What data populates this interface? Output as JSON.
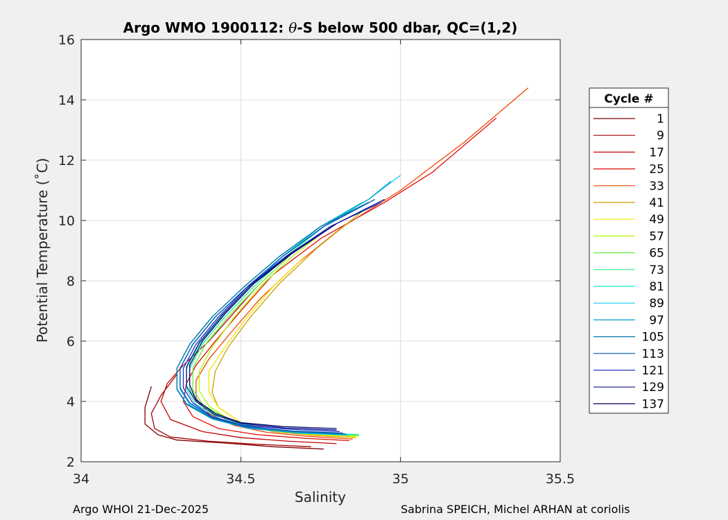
{
  "chart_data": {
    "type": "line",
    "title": {
      "prefix": "Argo WMO 1900112: ",
      "theta": "θ",
      "suffix": "-S below 500 dbar,  QC=(1,2)"
    },
    "xlabel": "Salinity",
    "ylabel": "Potential Temperature (˚C)",
    "xlim": [
      34,
      35.5
    ],
    "ylim": [
      2,
      16
    ],
    "xticks": [
      "34",
      "34.5",
      "35",
      "35.5"
    ],
    "xtick_values": [
      34,
      34.5,
      35,
      35.5
    ],
    "yticks": [
      "2",
      "4",
      "6",
      "8",
      "10",
      "12",
      "14",
      "16"
    ],
    "ytick_values": [
      2,
      4,
      6,
      8,
      10,
      12,
      14,
      16
    ],
    "grid": true,
    "legend": {
      "title": "Cycle #",
      "placement": "right",
      "entries": [
        {
          "label": "1",
          "color": "#800000"
        },
        {
          "label": "9",
          "color": "#a00000"
        },
        {
          "label": "17",
          "color": "#c80000"
        },
        {
          "label": "25",
          "color": "#e00a00"
        },
        {
          "label": "33",
          "color": "#f04500"
        },
        {
          "label": "41",
          "color": "#c8a000"
        },
        {
          "label": "49",
          "color": "#f5e600"
        },
        {
          "label": "57",
          "color": "#b4f500"
        },
        {
          "label": "65",
          "color": "#5ff03c"
        },
        {
          "label": "73",
          "color": "#28f08c"
        },
        {
          "label": "81",
          "color": "#14e6c8"
        },
        {
          "label": "89",
          "color": "#14c8f0"
        },
        {
          "label": "97",
          "color": "#00a0d2"
        },
        {
          "label": "105",
          "color": "#0078aa"
        },
        {
          "label": "113",
          "color": "#0050b4"
        },
        {
          "label": "121",
          "color": "#1e32c8"
        },
        {
          "label": "129",
          "color": "#0a148c"
        },
        {
          "label": "137",
          "color": "#000064"
        }
      ]
    },
    "series": [
      {
        "name": "1",
        "points": [
          [
            34.76,
            2.42
          ],
          [
            34.6,
            2.5
          ],
          [
            34.45,
            2.62
          ],
          [
            34.3,
            2.72
          ],
          [
            34.24,
            2.9
          ],
          [
            34.2,
            3.25
          ],
          [
            34.2,
            3.8
          ],
          [
            34.22,
            4.5
          ]
        ]
      },
      {
        "name": "9",
        "points": [
          [
            34.72,
            2.5
          ],
          [
            34.55,
            2.58
          ],
          [
            34.4,
            2.68
          ],
          [
            34.28,
            2.82
          ],
          [
            34.23,
            3.1
          ],
          [
            34.22,
            3.6
          ],
          [
            34.25,
            4.2
          ],
          [
            34.3,
            4.9
          ]
        ]
      },
      {
        "name": "17",
        "points": [
          [
            34.8,
            2.6
          ],
          [
            34.65,
            2.68
          ],
          [
            34.5,
            2.8
          ],
          [
            34.38,
            3.0
          ],
          [
            34.28,
            3.4
          ],
          [
            34.25,
            4.0
          ],
          [
            34.27,
            4.6
          ],
          [
            34.32,
            5.2
          ],
          [
            34.4,
            6.0
          ],
          [
            34.45,
            6.6
          ],
          [
            34.5,
            7.2
          ],
          [
            34.55,
            7.8
          ]
        ]
      },
      {
        "name": "25",
        "points": [
          [
            34.84,
            2.7
          ],
          [
            34.7,
            2.78
          ],
          [
            34.55,
            2.9
          ],
          [
            34.43,
            3.1
          ],
          [
            34.35,
            3.5
          ],
          [
            34.32,
            4.0
          ],
          [
            34.33,
            4.6
          ],
          [
            34.36,
            5.2
          ],
          [
            34.42,
            6.0
          ],
          [
            34.5,
            7.0
          ],
          [
            34.6,
            8.2
          ],
          [
            34.75,
            9.4
          ],
          [
            34.95,
            10.6
          ],
          [
            35.1,
            11.6
          ],
          [
            35.3,
            13.4
          ]
        ]
      },
      {
        "name": "33",
        "points": [
          [
            34.85,
            2.75
          ],
          [
            34.7,
            2.85
          ],
          [
            34.58,
            2.98
          ],
          [
            34.48,
            3.2
          ],
          [
            34.4,
            3.6
          ],
          [
            34.36,
            4.1
          ],
          [
            34.36,
            4.7
          ],
          [
            34.4,
            5.4
          ],
          [
            34.47,
            6.3
          ],
          [
            34.56,
            7.4
          ],
          [
            34.68,
            8.6
          ],
          [
            34.82,
            9.8
          ],
          [
            35.0,
            11.0
          ],
          [
            35.2,
            12.6
          ],
          [
            35.4,
            14.4
          ]
        ]
      },
      {
        "name": "41",
        "points": [
          [
            34.86,
            2.8
          ],
          [
            34.72,
            2.88
          ],
          [
            34.6,
            3.0
          ],
          [
            34.5,
            3.3
          ],
          [
            34.43,
            3.8
          ],
          [
            34.41,
            4.3
          ],
          [
            34.42,
            5.0
          ],
          [
            34.46,
            5.8
          ],
          [
            34.53,
            6.8
          ],
          [
            34.62,
            7.9
          ],
          [
            34.74,
            9.1
          ],
          [
            34.88,
            10.3
          ]
        ]
      },
      {
        "name": "49",
        "points": [
          [
            34.86,
            2.82
          ],
          [
            34.72,
            2.9
          ],
          [
            34.6,
            3.02
          ],
          [
            34.5,
            3.3
          ],
          [
            34.43,
            3.8
          ],
          [
            34.4,
            4.3
          ],
          [
            34.4,
            5.0
          ],
          [
            34.45,
            5.8
          ],
          [
            34.52,
            6.8
          ],
          [
            34.6,
            7.8
          ],
          [
            34.7,
            8.8
          ]
        ]
      },
      {
        "name": "57",
        "points": [
          [
            34.87,
            2.85
          ],
          [
            34.72,
            2.92
          ],
          [
            34.58,
            3.06
          ],
          [
            34.47,
            3.35
          ],
          [
            34.4,
            3.85
          ],
          [
            34.37,
            4.35
          ],
          [
            34.37,
            5.0
          ],
          [
            34.41,
            5.8
          ],
          [
            34.48,
            6.8
          ],
          [
            34.56,
            7.8
          ],
          [
            34.66,
            8.8
          ],
          [
            34.78,
            9.8
          ]
        ]
      },
      {
        "name": "65",
        "points": [
          [
            34.87,
            2.88
          ],
          [
            34.72,
            2.95
          ],
          [
            34.57,
            3.1
          ],
          [
            34.46,
            3.4
          ],
          [
            34.38,
            3.9
          ],
          [
            34.35,
            4.4
          ],
          [
            34.35,
            5.1
          ],
          [
            34.39,
            5.9
          ],
          [
            34.46,
            6.8
          ],
          [
            34.55,
            7.8
          ],
          [
            34.65,
            8.8
          ]
        ]
      },
      {
        "name": "73",
        "points": [
          [
            34.87,
            2.9
          ],
          [
            34.71,
            2.97
          ],
          [
            34.56,
            3.12
          ],
          [
            34.45,
            3.42
          ],
          [
            34.37,
            3.9
          ],
          [
            34.34,
            4.4
          ],
          [
            34.34,
            5.1
          ],
          [
            34.38,
            5.9
          ],
          [
            34.45,
            6.8
          ],
          [
            34.54,
            7.8
          ],
          [
            34.64,
            8.8
          ],
          [
            34.76,
            9.8
          ]
        ]
      },
      {
        "name": "81",
        "points": [
          [
            34.86,
            2.9
          ],
          [
            34.7,
            2.98
          ],
          [
            34.55,
            3.12
          ],
          [
            34.44,
            3.4
          ],
          [
            34.36,
            3.9
          ],
          [
            34.33,
            4.4
          ],
          [
            34.33,
            5.1
          ],
          [
            34.37,
            5.9
          ],
          [
            34.44,
            6.8
          ],
          [
            34.53,
            7.8
          ],
          [
            34.63,
            8.8
          ],
          [
            34.75,
            9.8
          ],
          [
            34.88,
            10.6
          ]
        ]
      },
      {
        "name": "89",
        "points": [
          [
            34.84,
            2.88
          ],
          [
            34.68,
            2.95
          ],
          [
            34.53,
            3.1
          ],
          [
            34.42,
            3.4
          ],
          [
            34.34,
            3.9
          ],
          [
            34.31,
            4.4
          ],
          [
            34.31,
            5.1
          ],
          [
            34.35,
            5.9
          ],
          [
            34.42,
            6.8
          ],
          [
            34.52,
            7.8
          ],
          [
            34.63,
            8.8
          ],
          [
            34.76,
            9.8
          ],
          [
            34.9,
            10.7
          ],
          [
            35.0,
            11.5
          ]
        ]
      },
      {
        "name": "97",
        "points": [
          [
            34.83,
            2.9
          ],
          [
            34.67,
            2.97
          ],
          [
            34.52,
            3.12
          ],
          [
            34.41,
            3.42
          ],
          [
            34.33,
            3.9
          ],
          [
            34.3,
            4.4
          ],
          [
            34.3,
            5.1
          ],
          [
            34.34,
            5.9
          ],
          [
            34.41,
            6.8
          ],
          [
            34.51,
            7.8
          ],
          [
            34.62,
            8.8
          ],
          [
            34.75,
            9.8
          ],
          [
            34.9,
            10.7
          ],
          [
            34.97,
            11.3
          ]
        ]
      },
      {
        "name": "105",
        "points": [
          [
            34.83,
            2.92
          ],
          [
            34.67,
            3.0
          ],
          [
            34.52,
            3.15
          ],
          [
            34.41,
            3.45
          ],
          [
            34.33,
            3.92
          ],
          [
            34.3,
            4.42
          ],
          [
            34.3,
            5.1
          ],
          [
            34.34,
            5.9
          ],
          [
            34.41,
            6.8
          ],
          [
            34.51,
            7.8
          ],
          [
            34.62,
            8.8
          ],
          [
            34.75,
            9.8
          ],
          [
            34.9,
            10.6
          ]
        ]
      },
      {
        "name": "113",
        "points": [
          [
            34.82,
            2.95
          ],
          [
            34.66,
            3.02
          ],
          [
            34.51,
            3.18
          ],
          [
            34.41,
            3.48
          ],
          [
            34.34,
            3.95
          ],
          [
            34.31,
            4.45
          ],
          [
            34.31,
            5.1
          ],
          [
            34.35,
            5.9
          ],
          [
            34.42,
            6.8
          ],
          [
            34.52,
            7.8
          ],
          [
            34.63,
            8.8
          ],
          [
            34.76,
            9.8
          ],
          [
            34.92,
            10.7
          ]
        ]
      },
      {
        "name": "121",
        "points": [
          [
            34.81,
            3.0
          ],
          [
            34.65,
            3.08
          ],
          [
            34.5,
            3.22
          ],
          [
            34.41,
            3.5
          ],
          [
            34.35,
            3.95
          ],
          [
            34.32,
            4.45
          ],
          [
            34.32,
            5.1
          ],
          [
            34.36,
            5.9
          ],
          [
            34.43,
            6.8
          ],
          [
            34.52,
            7.8
          ],
          [
            34.64,
            8.8
          ],
          [
            34.78,
            9.8
          ],
          [
            34.94,
            10.6
          ]
        ]
      },
      {
        "name": "129",
        "points": [
          [
            34.8,
            3.05
          ],
          [
            34.64,
            3.12
          ],
          [
            34.5,
            3.27
          ],
          [
            34.42,
            3.55
          ],
          [
            34.36,
            4.0
          ],
          [
            34.33,
            4.5
          ],
          [
            34.33,
            5.15
          ],
          [
            34.37,
            5.95
          ],
          [
            34.44,
            6.85
          ],
          [
            34.53,
            7.85
          ],
          [
            34.65,
            8.85
          ],
          [
            34.8,
            9.9
          ],
          [
            34.95,
            10.7
          ]
        ]
      },
      {
        "name": "137",
        "points": [
          [
            34.8,
            3.1
          ],
          [
            34.63,
            3.17
          ],
          [
            34.5,
            3.3
          ],
          [
            34.42,
            3.6
          ],
          [
            34.36,
            4.05
          ],
          [
            34.34,
            4.55
          ],
          [
            34.34,
            5.2
          ],
          [
            34.38,
            6.0
          ],
          [
            34.45,
            6.9
          ],
          [
            34.54,
            7.9
          ],
          [
            34.66,
            8.9
          ],
          [
            34.8,
            9.9
          ]
        ]
      }
    ]
  },
  "footer": {
    "left": "Argo WHOI 21-Dec-2025",
    "right": "Sabrina SPEICH, Michel ARHAN at coriolis"
  }
}
